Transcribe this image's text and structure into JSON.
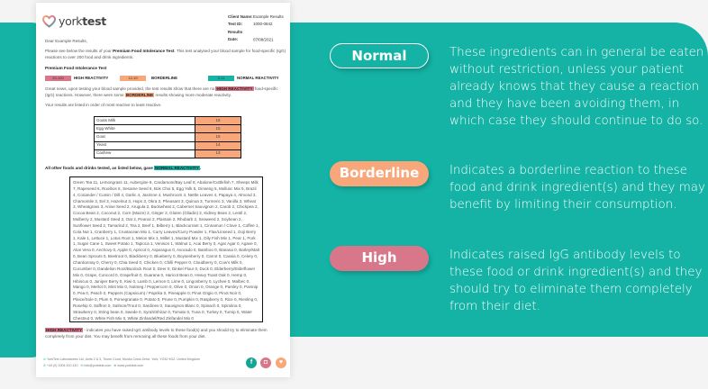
{
  "colors": {
    "teal": "#14b3a5",
    "high": "#d9778a",
    "borderline": "#f7a77a",
    "normal": "#18b3a6"
  },
  "doc": {
    "logo": {
      "prefix": "york",
      "suffix": "test"
    },
    "client": {
      "name_label": "Client Name:",
      "name": "Example Results",
      "id_label": "Test ID:",
      "id": "1000-0842",
      "date_label": "Results Date:",
      "date": "07/08/2021"
    },
    "greeting": "Dear Example Results,",
    "intro_pre": "Please see below the results of your ",
    "intro_bold": "Premium Food Intolerance Test",
    "intro_post": ". This test analysed your blood sample for food-specific (IgG) reactions to over 200 food and drink ingredients.",
    "test_title": "Premium Food Intolerance Test",
    "legend": [
      {
        "range": "20-100",
        "label": "HIGH REACTIVITY"
      },
      {
        "range": "12-19",
        "label": "BORDERLINE"
      },
      {
        "range": "0-11",
        "label": "NORMAL REACTIVITY"
      }
    ],
    "news_pre": "Great news, upon testing your blood sample provided, the test results show that there are no ",
    "news_hl1": "HIGH REACTIVITY",
    "news_mid": " food-specific (IgG) reactions. However, there were some ",
    "news_hl2": "BORDERLINE",
    "news_post": " results showing more moderate reactivity.",
    "order_note": "Your results are listed in order of most reactive to least reactive.",
    "results": [
      {
        "food": "Goats Milk",
        "value": "16"
      },
      {
        "food": "Egg White",
        "value": "15"
      },
      {
        "food": "Goat",
        "value": "15"
      },
      {
        "food": "Yeast",
        "value": "14"
      },
      {
        "food": "Cashew",
        "value": "13"
      }
    ],
    "others_pre": "All other foods and drinks tested, as listed below, gave ",
    "others_hl": "NORMAL REACTIVITY",
    "others_post": ".",
    "normal_list": "Green Tea 11, Lemongrass 11, Aubergine 8, Cardamom/Bay Leaf 8, Abalone/Cuttlefish 7, Sheeps Milk 7, Rapeseed 6, Rooibos 6, Sesame Seed 6, Bok Choi 5, Egg Yolk 5, Ginseng 5, Mollusc Mix 5, Brazil 4, Coriander / Cumin / Dill 4, Garlic 4, Jasmine 4, Mushroom 4, Nettle Leaves 4, Papaya 4, Almond 3, Chamomile 3, Eel 3, Hazelnut 3, Hops 3, Okra 3, Pheasant 3, Quinoa 3, Turmeric 3, Vanilla 3, Wheat 3, Wheatgrass 3, Anise Seed 2, Arugula 2, Buckwheat 2, Cabernet Sauvignon 2, Carob 2, Chickpea 2, Cocoa Bean 2, Coconut 2, Corn (Maize) 2, Ginger 2, Gluten (Gliadin) 2, Kidney Bean 2, Lentil 2, Mulberry 2, Mustard Seed 2, Oat 2, Peanut 2, Plantain 2, Rhubarb 2, Seaweed 2, Soybean 2, Sunflower Seed 2, Tamarind 2, Tea 2, Beef 1, Bilberry 1, Blackcurrant 1, Cinnamon / Clove 1, Coffee 1, Cola Nut 1, Cranberry 1, Crustacean Mix 1, Curry Leaves/Curry Powder 1, Flax/Linseed 1, Goji Berry 1, Kale 1, Lettuce 1, Lotus Root 1, Melon Mix 1, Millet 1, Mustard Mix 1, Oily Fish Mix 1, Pear 1, Pork 1, Sugar Cane 1, Sweet Potato 1, Tapioca 1, Venison 1, Walnut 1, Acai Berry 0, Agar Agar 0, Agave 0, Aloe Vera 0, Anchovy 0, Apple 0, Apricot 0, Asparagus 0, Avocado 0, Bamboo 0, Banana 0, Barley/Malt 0, Bean Sprouts 0, Beetroot 0, Blackberry 0, Blueberry 0, Boysenberry 0, Carrot 0, Cassia 0, Celery 0, Chardonnay 0, Cherry 0, Chia Seed 0, Chicken 0, Chilli Pepper 0, Cloudberry 0, Cow's Milk 0, Cucumber 0, Dandelion Root/Burdock Root 0, Deer 0, Dinkel Flour 0, Duck 0, Elderberry/Elderflower Mix 0, Grape, Concord 0, Grapefruit 0, Guarana 0, Haricot Bean 0, Heavy Toast Oak 0, Hemp 0, Hibiscus 0, Juniper Berry 0, Kiwi 0, Lamb 0, Lemon 0, Lime 0, Lingonberry 0, Lychee 0, Malbec 0, Mango 0, Merlot 0, Mint Mix 0, Nutmeg / Peppercorn 0, Olive 0, Onion 0, Orange 0, Parsley 0, Parsnip 0, Pea 0, Peach 0, Peppers (Capsicum) / Paprika 0, Pineapple 0, Pinot Grigio 0, Pinot Noir 0, Plaice/Sole 0, Plum 0, Pomegranate 0, Potato 0, Prune 0, Pumpkin 0, Raspberry 0, Rice 0, Riesling 0, Rosehip 0, Saffron 0, Salmon/Trout 0, Sardines 0, Sauvignon Blanc 0, Spinach 0, Spirulina 0, Strawberry 0, String bean 0, Swede 0, Syrah/Shiraz 0, Tomato 0, Tuna 0, Turkey 0, Turnip 0, Water Chestnut 0, White Fish Mix 0, White Zinfandel/Red Zinfandel Mix 0",
    "high_note_hl": "HIGH REACTIVITY",
    "high_note": " - indicates you have raised IgG antibody levels to these food(s) and you should try to eliminate them completely from your diet. You may benefit from removing all these foods from your diet.",
    "footer": {
      "address": "YorkTest Laboratories Ltd, Units 2 & 3, Triune Court, Monks Cross Drive, York, YO32 9GZ, United Kingdom",
      "phone": "+44 (0) 1904 410 410",
      "email": "info@yorktest.com",
      "web": "www.yorktest.com"
    },
    "social": [
      "facebook-icon",
      "instagram-icon",
      "twitter-icon"
    ]
  },
  "legend_panel": [
    {
      "label": "Normal",
      "text": "These ingredients can in general be eaten without restriction, unless your patient already knows that they cause a reaction and they have been avoiding them, in which case they should continue to do so."
    },
    {
      "label": "Borderline",
      "text": "Indicates a borderline reaction to these food and drink ingredient(s) and they may benefit by limiting their consumption."
    },
    {
      "label": "High",
      "text": "Indicates raised IgG antibody levels to these food or drink ingredient(s) and they should try to eliminate them completely from their diet."
    }
  ]
}
